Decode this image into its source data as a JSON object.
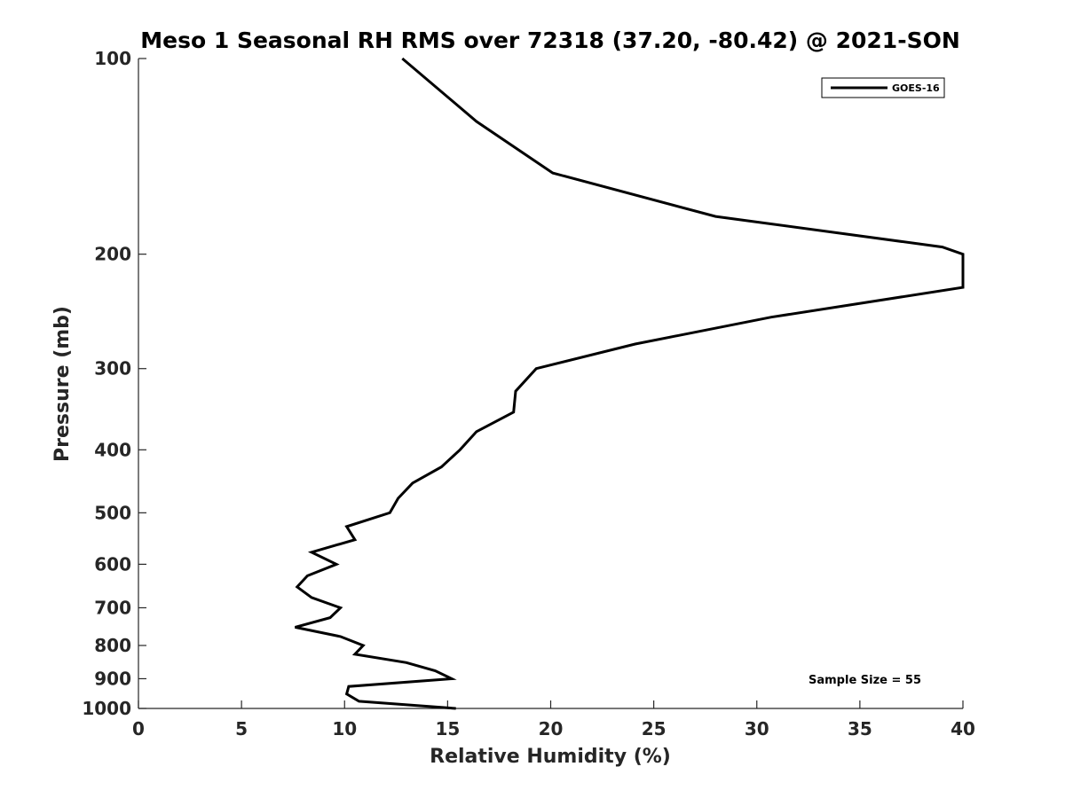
{
  "chart_data": {
    "type": "line",
    "title": "Meso 1 Seasonal RH RMS over 72318 (37.20, -80.42) @ 2021-SON",
    "xlabel": "Relative Humidity (%)",
    "ylabel": "Pressure (mb)",
    "xlim": [
      0,
      40
    ],
    "ylim": [
      100,
      1000
    ],
    "y_scale": "log",
    "y_reversed": true,
    "x_ticks": [
      0,
      5,
      10,
      15,
      20,
      25,
      30,
      35,
      40
    ],
    "x_tick_labels": [
      "0",
      "5",
      "10",
      "15",
      "20",
      "25",
      "30",
      "35",
      "40"
    ],
    "y_ticks": [
      100,
      200,
      300,
      400,
      500,
      600,
      700,
      800,
      900,
      1000
    ],
    "y_tick_labels": [
      "100",
      "200",
      "300",
      "400",
      "500",
      "600",
      "700",
      "800",
      "900",
      "1000"
    ],
    "grid": false,
    "legend_position": "top-right",
    "annotation": "Sample Size = 55",
    "series": [
      {
        "name": "GOES-16",
        "color": "#000000",
        "points": [
          {
            "x": 12.8,
            "p": 100
          },
          {
            "x": 16.4,
            "p": 125
          },
          {
            "x": 20.1,
            "p": 150
          },
          {
            "x": 28.0,
            "p": 175
          },
          {
            "x": 39.0,
            "p": 195
          },
          {
            "x": 40.0,
            "p": 200
          },
          {
            "x": 40.0,
            "p": 225
          },
          {
            "x": 30.7,
            "p": 250
          },
          {
            "x": 24.1,
            "p": 275
          },
          {
            "x": 19.3,
            "p": 300
          },
          {
            "x": 18.3,
            "p": 325
          },
          {
            "x": 18.2,
            "p": 350
          },
          {
            "x": 16.4,
            "p": 375
          },
          {
            "x": 15.6,
            "p": 400
          },
          {
            "x": 14.7,
            "p": 425
          },
          {
            "x": 13.3,
            "p": 450
          },
          {
            "x": 12.6,
            "p": 475
          },
          {
            "x": 12.2,
            "p": 500
          },
          {
            "x": 10.1,
            "p": 525
          },
          {
            "x": 10.5,
            "p": 550
          },
          {
            "x": 8.4,
            "p": 575
          },
          {
            "x": 9.6,
            "p": 600
          },
          {
            "x": 8.2,
            "p": 625
          },
          {
            "x": 7.7,
            "p": 650
          },
          {
            "x": 8.4,
            "p": 675
          },
          {
            "x": 9.8,
            "p": 700
          },
          {
            "x": 9.3,
            "p": 725
          },
          {
            "x": 7.6,
            "p": 750
          },
          {
            "x": 9.8,
            "p": 775
          },
          {
            "x": 10.9,
            "p": 800
          },
          {
            "x": 10.5,
            "p": 825
          },
          {
            "x": 13.0,
            "p": 850
          },
          {
            "x": 14.4,
            "p": 875
          },
          {
            "x": 15.2,
            "p": 900
          },
          {
            "x": 10.2,
            "p": 925
          },
          {
            "x": 10.1,
            "p": 950
          },
          {
            "x": 10.7,
            "p": 975
          },
          {
            "x": 15.4,
            "p": 1000
          }
        ]
      }
    ]
  }
}
